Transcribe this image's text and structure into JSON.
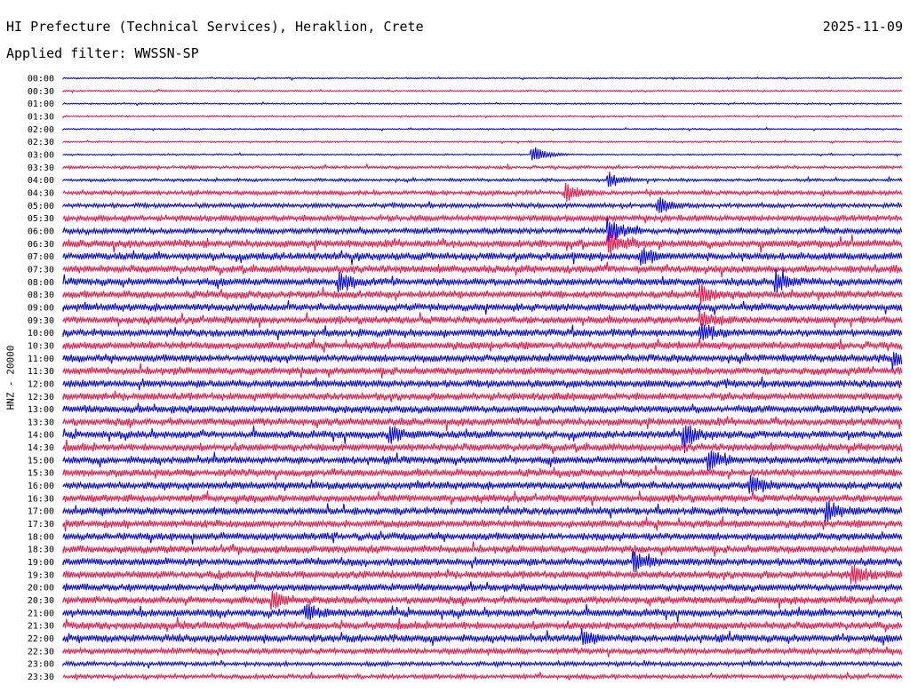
{
  "header": {
    "title": "HI Prefecture (Technical Services), Heraklion, Crete",
    "date": "2025-11-09",
    "filter": "Applied filter: WWSSN-SP",
    "channel_label": "HNZ - 20000"
  },
  "colors": {
    "trace_a": "#0000ee",
    "trace_b": "#ee1144",
    "background": "#ffffff"
  },
  "chart_data": {
    "type": "line",
    "title": "HI Prefecture (Technical Services), Heraklion, Crete",
    "subtitle": "Applied filter: WWSSN-SP",
    "ylabel": "HNZ - 20000",
    "xlabel": "",
    "grid": false,
    "legend": "none",
    "row_labels": [
      "00:00",
      "00:30",
      "01:00",
      "01:30",
      "02:00",
      "02:30",
      "03:00",
      "03:30",
      "04:00",
      "04:30",
      "05:00",
      "05:30",
      "06:00",
      "06:30",
      "07:00",
      "07:30",
      "08:00",
      "08:30",
      "09:00",
      "09:30",
      "10:00",
      "10:30",
      "11:00",
      "11:30",
      "12:00",
      "12:30",
      "13:00",
      "13:30",
      "14:00",
      "14:30",
      "15:00",
      "15:30",
      "16:00",
      "16:30",
      "17:00",
      "17:30",
      "18:00",
      "18:30",
      "19:00",
      "19:30",
      "20:00",
      "20:30",
      "21:00",
      "21:30",
      "22:00",
      "22:30",
      "23:00",
      "23:30"
    ],
    "row_colors": [
      "#0000ee",
      "#ee1144"
    ],
    "noise_level": [
      1,
      1,
      1,
      1,
      1,
      1,
      1,
      2,
      2,
      3,
      3,
      4,
      4,
      5,
      5,
      5,
      5,
      5,
      5,
      5,
      5,
      5,
      5,
      5,
      5,
      5,
      5,
      5,
      5,
      5,
      5,
      5,
      5,
      5,
      5,
      5,
      5,
      5,
      5,
      5,
      5,
      5,
      5,
      5,
      5,
      4,
      3,
      3
    ],
    "events": [
      {
        "row": "03:00",
        "at": 0.56,
        "amp": 10
      },
      {
        "row": "04:00",
        "at": 0.65,
        "amp": 9
      },
      {
        "row": "04:30",
        "at": 0.6,
        "amp": 9
      },
      {
        "row": "05:00",
        "at": 0.71,
        "amp": 9
      },
      {
        "row": "06:00",
        "at": 0.65,
        "amp": 14
      },
      {
        "row": "06:30",
        "at": 0.65,
        "amp": 12
      },
      {
        "row": "07:00",
        "at": 0.69,
        "amp": 10
      },
      {
        "row": "08:00",
        "at": 0.33,
        "amp": 10
      },
      {
        "row": "08:00",
        "at": 0.85,
        "amp": 11
      },
      {
        "row": "08:30",
        "at": 0.76,
        "amp": 10
      },
      {
        "row": "09:30",
        "at": 0.76,
        "amp": 9
      },
      {
        "row": "10:00",
        "at": 0.76,
        "amp": 10
      },
      {
        "row": "11:00",
        "at": 0.99,
        "amp": 10
      },
      {
        "row": "14:00",
        "at": 0.74,
        "amp": 12
      },
      {
        "row": "14:00",
        "at": 0.39,
        "amp": 10
      },
      {
        "row": "15:00",
        "at": 0.77,
        "amp": 10
      },
      {
        "row": "16:00",
        "at": 0.82,
        "amp": 10
      },
      {
        "row": "17:00",
        "at": 0.91,
        "amp": 10
      },
      {
        "row": "19:00",
        "at": 0.68,
        "amp": 11
      },
      {
        "row": "19:30",
        "at": 0.94,
        "amp": 11
      },
      {
        "row": "20:30",
        "at": 0.25,
        "amp": 10
      },
      {
        "row": "21:00",
        "at": 0.29,
        "amp": 9
      },
      {
        "row": "22:00",
        "at": 0.62,
        "amp": 8
      }
    ]
  }
}
